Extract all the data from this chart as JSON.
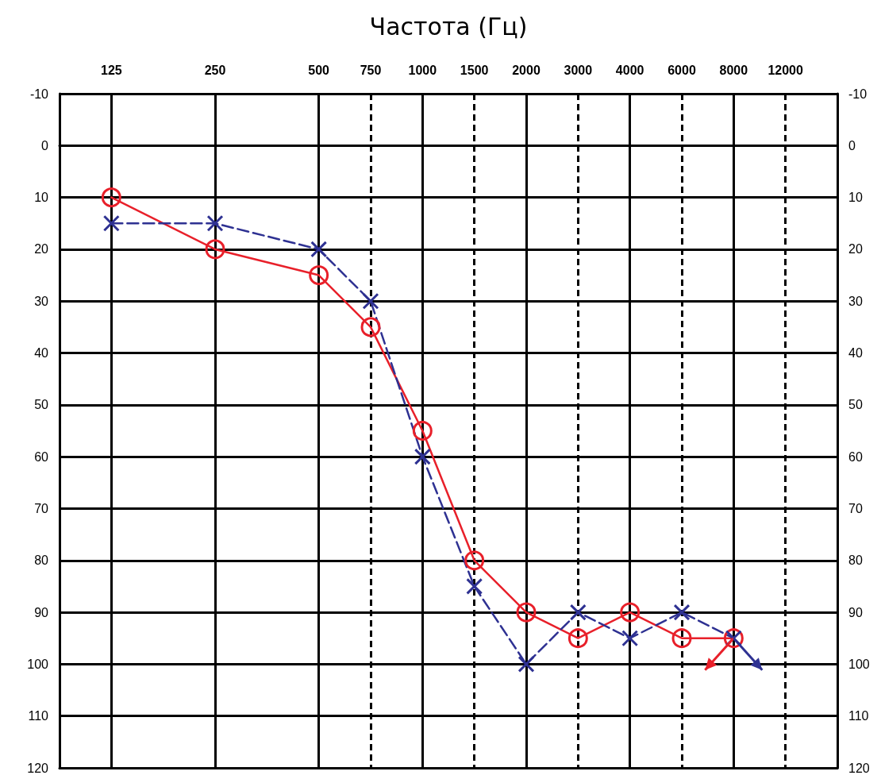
{
  "chart_data": {
    "type": "line",
    "xlabel": "Частота (Гц)",
    "categories": [
      null,
      "125",
      null,
      "250",
      null,
      "500",
      "750",
      "1000",
      "1500",
      "2000",
      "3000",
      "4000",
      "6000",
      "8000",
      "12000",
      null
    ],
    "series": [
      {
        "color": "#e8202a",
        "marker": "circle",
        "line_style": "solid",
        "values": [
          null,
          10,
          null,
          20,
          null,
          25,
          35,
          55,
          80,
          90,
          95,
          90,
          95,
          95,
          null,
          null
        ]
      },
      {
        "color": "#2e3192",
        "marker": "cross",
        "line_style": "dashed",
        "values": [
          null,
          15,
          null,
          15,
          null,
          20,
          30,
          60,
          85,
          100,
          90,
          95,
          90,
          95,
          null,
          null
        ]
      }
    ],
    "ylim": [
      120,
      -10
    ],
    "yticks": [
      -10,
      0,
      10,
      20,
      30,
      40,
      50,
      60,
      70,
      80,
      90,
      100,
      110,
      120
    ],
    "y2lim": [
      120,
      -10
    ],
    "y2ticks": [
      -10,
      0,
      10,
      20,
      30,
      40,
      50,
      60,
      70,
      80,
      90,
      100,
      110,
      120
    ],
    "grid": true
  }
}
